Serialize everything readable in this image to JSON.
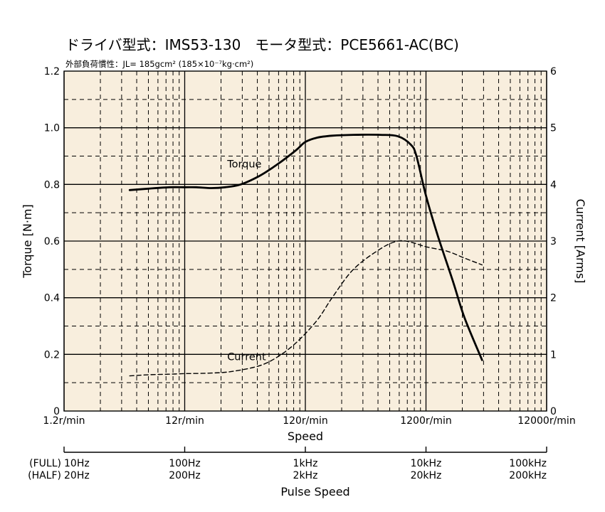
{
  "chart_data": {
    "type": "line",
    "title": "ドライバ型式：IMS53-130　モータ型式：PCE5661-AC(BC)",
    "subtitle": "外部負荷慣性：JL= 185gcm² (185×10⁻⁷kg·cm²)",
    "xlabel": "Speed",
    "ylabel_left": "Torque [N·m]",
    "ylabel_right": "Current [Arms]",
    "x_scale": "log",
    "xlim": [
      1.2,
      12000
    ],
    "ylim_left": [
      0,
      1.2
    ],
    "ylim_right": [
      0,
      6
    ],
    "grid": true,
    "background": "#f8eedd",
    "x_ticks": [
      {
        "value": 1.2,
        "label": "1.2r/min"
      },
      {
        "value": 12,
        "label": "12r/min"
      },
      {
        "value": 120,
        "label": "120r/min"
      },
      {
        "value": 1200,
        "label": "1200r/min"
      },
      {
        "value": 12000,
        "label": "12000r/min"
      }
    ],
    "y_ticks_left": [
      {
        "value": 0,
        "label": "0"
      },
      {
        "value": 0.2,
        "label": "0.2"
      },
      {
        "value": 0.4,
        "label": "0.4"
      },
      {
        "value": 0.6,
        "label": "0.6"
      },
      {
        "value": 0.8,
        "label": "0.8"
      },
      {
        "value": 1.0,
        "label": "1.0"
      },
      {
        "value": 1.2,
        "label": "1.2"
      }
    ],
    "y_ticks_right": [
      {
        "value": 0,
        "label": "0"
      },
      {
        "value": 1,
        "label": "1"
      },
      {
        "value": 2,
        "label": "2"
      },
      {
        "value": 3,
        "label": "3"
      },
      {
        "value": 4,
        "label": "4"
      },
      {
        "value": 5,
        "label": "5"
      },
      {
        "value": 6,
        "label": "6"
      }
    ],
    "series": [
      {
        "name": "Torque",
        "axis": "left",
        "style": "solid",
        "color": "#000000",
        "x": [
          4.2,
          6,
          9,
          12,
          15,
          20,
          26,
          35,
          50,
          70,
          100,
          120,
          150,
          200,
          300,
          500,
          700,
          900,
          1000,
          1200,
          1500,
          2000,
          2500,
          3500
        ],
        "y": [
          0.78,
          0.785,
          0.79,
          0.79,
          0.79,
          0.787,
          0.79,
          0.8,
          0.83,
          0.87,
          0.92,
          0.95,
          0.965,
          0.972,
          0.975,
          0.975,
          0.97,
          0.94,
          0.9,
          0.76,
          0.62,
          0.46,
          0.33,
          0.18
        ]
      },
      {
        "name": "Current",
        "axis": "right",
        "style": "dashed",
        "color": "#000000",
        "x": [
          4.2,
          6,
          9,
          12,
          20,
          30,
          50,
          70,
          100,
          150,
          200,
          300,
          500,
          700,
          900,
          1200,
          1800,
          2500,
          3500
        ],
        "y": [
          0.62,
          0.64,
          0.65,
          0.66,
          0.67,
          0.7,
          0.8,
          0.95,
          1.2,
          1.6,
          2.0,
          2.5,
          2.86,
          3.0,
          2.98,
          2.9,
          2.82,
          2.7,
          2.58
        ]
      }
    ],
    "annotations": [
      {
        "text": "Torque",
        "x": 27,
        "y": 0.86
      },
      {
        "text": "Current",
        "x": 27,
        "y": 0.18
      }
    ],
    "pulse_axis": {
      "label": "Pulse Speed",
      "row_labels": [
        "(FULL)",
        "(HALF)"
      ],
      "ticks": [
        {
          "value": 1.2,
          "full": "10Hz",
          "half": "20Hz"
        },
        {
          "value": 12,
          "full": "100Hz",
          "half": "200Hz"
        },
        {
          "value": 120,
          "full": "1kHz",
          "half": "2kHz"
        },
        {
          "value": 1200,
          "full": "10kHz",
          "half": "20kHz"
        },
        {
          "value": 12000,
          "full": "100kHz",
          "half": "200kHz"
        }
      ]
    }
  }
}
